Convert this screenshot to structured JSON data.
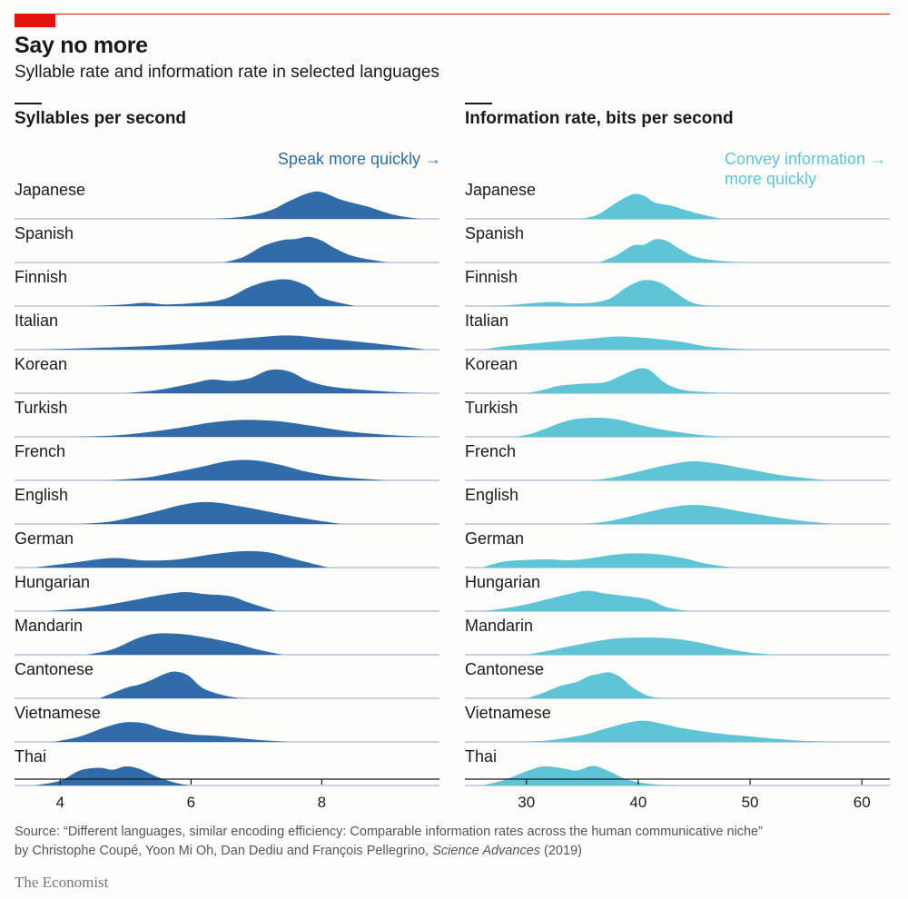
{
  "header": {
    "title": "Say no more",
    "subtitle": "Syllable rate and information rate in selected languages"
  },
  "colors": {
    "accent": "#e3120b",
    "left_fill": "#2f6ca8",
    "right_fill": "#5ec5d6",
    "baseline": "#aab9c9"
  },
  "chart_data": [
    {
      "type": "area",
      "title": "Syllables per second",
      "annotation": "Speak more quickly →",
      "xlim": [
        3.3,
        9.8
      ],
      "xticks": [
        4,
        6,
        8
      ],
      "grid": false,
      "languages": [
        "Japanese",
        "Spanish",
        "Finnish",
        "Italian",
        "Korean",
        "Turkish",
        "French",
        "English",
        "German",
        "Hungarian",
        "Mandarin",
        "Cantonese",
        "Vietnamese",
        "Thai"
      ],
      "series": [
        {
          "name": "Japanese",
          "x": [
            6.3,
            6.8,
            7.2,
            7.5,
            7.8,
            8.0,
            8.3,
            8.7,
            9.1,
            9.5
          ],
          "y": [
            0,
            0.08,
            0.3,
            0.65,
            0.95,
            0.98,
            0.7,
            0.45,
            0.15,
            0
          ]
        },
        {
          "name": "Spanish",
          "x": [
            6.5,
            6.8,
            7.1,
            7.4,
            7.6,
            7.8,
            8.0,
            8.2,
            8.5,
            9.0
          ],
          "y": [
            0,
            0.2,
            0.6,
            0.82,
            0.86,
            0.94,
            0.8,
            0.52,
            0.22,
            0
          ]
        },
        {
          "name": "Finnish",
          "x": [
            4.5,
            5.0,
            5.3,
            5.6,
            6.0,
            6.5,
            6.9,
            7.2,
            7.5,
            7.8,
            8.0,
            8.5
          ],
          "y": [
            0,
            0.06,
            0.12,
            0.06,
            0.1,
            0.25,
            0.7,
            0.92,
            0.97,
            0.7,
            0.3,
            0
          ]
        },
        {
          "name": "Italian",
          "x": [
            3.6,
            4.5,
            5.5,
            6.3,
            7.0,
            7.5,
            8.0,
            8.6,
            9.2,
            9.6
          ],
          "y": [
            0,
            0.06,
            0.15,
            0.3,
            0.45,
            0.52,
            0.42,
            0.28,
            0.12,
            0
          ]
        },
        {
          "name": "Korean",
          "x": [
            5.0,
            5.5,
            6.0,
            6.3,
            6.6,
            6.9,
            7.2,
            7.5,
            7.8,
            8.2,
            9.0,
            9.6
          ],
          "y": [
            0,
            0.12,
            0.35,
            0.5,
            0.45,
            0.55,
            0.85,
            0.8,
            0.45,
            0.22,
            0.06,
            0
          ]
        },
        {
          "name": "Turkish",
          "x": [
            4.2,
            5.0,
            5.8,
            6.3,
            6.8,
            7.3,
            7.8,
            8.4,
            9.0,
            9.6
          ],
          "y": [
            0,
            0.08,
            0.32,
            0.52,
            0.62,
            0.58,
            0.42,
            0.2,
            0.07,
            0
          ]
        },
        {
          "name": "French",
          "x": [
            4.7,
            5.3,
            5.8,
            6.2,
            6.6,
            7.0,
            7.4,
            7.8,
            8.3,
            9.0
          ],
          "y": [
            0,
            0.1,
            0.32,
            0.52,
            0.72,
            0.73,
            0.55,
            0.3,
            0.12,
            0
          ]
        },
        {
          "name": "English",
          "x": [
            4.3,
            4.8,
            5.4,
            5.9,
            6.3,
            6.8,
            7.3,
            7.8,
            8.3
          ],
          "y": [
            0,
            0.1,
            0.42,
            0.72,
            0.8,
            0.63,
            0.4,
            0.18,
            0
          ]
        },
        {
          "name": "German",
          "x": [
            3.6,
            4.2,
            4.8,
            5.3,
            5.8,
            6.3,
            6.8,
            7.2,
            7.6,
            8.1
          ],
          "y": [
            0,
            0.18,
            0.35,
            0.26,
            0.3,
            0.48,
            0.6,
            0.55,
            0.3,
            0
          ]
        },
        {
          "name": "Hungarian",
          "x": [
            3.8,
            4.4,
            5.0,
            5.5,
            5.9,
            6.2,
            6.6,
            6.9,
            7.3
          ],
          "y": [
            0,
            0.12,
            0.35,
            0.58,
            0.7,
            0.63,
            0.55,
            0.3,
            0
          ]
        },
        {
          "name": "Mandarin",
          "x": [
            4.4,
            4.8,
            5.2,
            5.5,
            5.9,
            6.3,
            6.7,
            7.0,
            7.4
          ],
          "y": [
            0,
            0.2,
            0.62,
            0.78,
            0.75,
            0.6,
            0.4,
            0.2,
            0
          ]
        },
        {
          "name": "Cantonese",
          "x": [
            4.6,
            5.0,
            5.2,
            5.4,
            5.6,
            5.75,
            5.95,
            6.2,
            6.6,
            6.9
          ],
          "y": [
            0,
            0.38,
            0.5,
            0.68,
            0.9,
            0.98,
            0.85,
            0.35,
            0.06,
            0
          ]
        },
        {
          "name": "Vietnamese",
          "x": [
            3.9,
            4.3,
            4.7,
            5.0,
            5.3,
            5.6,
            6.0,
            6.4,
            7.0,
            7.5
          ],
          "y": [
            0,
            0.2,
            0.55,
            0.72,
            0.68,
            0.45,
            0.28,
            0.22,
            0.08,
            0
          ]
        },
        {
          "name": "Thai",
          "x": [
            3.6,
            4.0,
            4.3,
            4.6,
            4.8,
            5.0,
            5.2,
            5.5,
            5.8,
            6.0
          ],
          "y": [
            0,
            0.18,
            0.55,
            0.65,
            0.58,
            0.7,
            0.62,
            0.3,
            0.08,
            0
          ]
        }
      ]
    },
    {
      "type": "area",
      "title": "Information rate, bits per second",
      "annotation_lines": [
        "Convey information →",
        "more quickly"
      ],
      "xlim": [
        24.5,
        62.5
      ],
      "xticks": [
        30,
        40,
        50,
        60
      ],
      "grid": false,
      "languages": [
        "Japanese",
        "Spanish",
        "Finnish",
        "Italian",
        "Korean",
        "Turkish",
        "French",
        "English",
        "German",
        "Hungarian",
        "Mandarin",
        "Cantonese",
        "Vietnamese",
        "Thai"
      ],
      "series": [
        {
          "name": "Japanese",
          "x": [
            35,
            36.5,
            38,
            39.5,
            40.5,
            41.5,
            43,
            44,
            45.5,
            47.5
          ],
          "y": [
            0,
            0.18,
            0.58,
            0.9,
            0.85,
            0.6,
            0.48,
            0.35,
            0.18,
            0
          ]
        },
        {
          "name": "Spanish",
          "x": [
            36.5,
            38,
            39.5,
            40.5,
            41.5,
            42.5,
            43.5,
            45,
            47,
            49.5
          ],
          "y": [
            0,
            0.25,
            0.62,
            0.65,
            0.85,
            0.8,
            0.55,
            0.22,
            0.07,
            0
          ]
        },
        {
          "name": "Finnish",
          "x": [
            27,
            29,
            31,
            32.5,
            34,
            36,
            37.5,
            39,
            40.5,
            42,
            43.5,
            45,
            47
          ],
          "y": [
            0,
            0.05,
            0.12,
            0.15,
            0.1,
            0.13,
            0.28,
            0.7,
            0.95,
            0.85,
            0.45,
            0.1,
            0
          ]
        },
        {
          "name": "Italian",
          "x": [
            26,
            28,
            30,
            32,
            35,
            38,
            40,
            42,
            44,
            46,
            48.5,
            51
          ],
          "y": [
            0,
            0.12,
            0.2,
            0.28,
            0.38,
            0.48,
            0.45,
            0.38,
            0.28,
            0.12,
            0.04,
            0
          ]
        },
        {
          "name": "Korean",
          "x": [
            30,
            31.5,
            33,
            35,
            37,
            38.5,
            40,
            41,
            42.5,
            44,
            46,
            48.5
          ],
          "y": [
            0,
            0.12,
            0.28,
            0.35,
            0.4,
            0.65,
            0.9,
            0.85,
            0.35,
            0.12,
            0.04,
            0
          ]
        },
        {
          "name": "Turkish",
          "x": [
            29,
            30.5,
            32,
            34,
            36,
            38,
            40,
            42,
            44,
            46,
            48
          ],
          "y": [
            0,
            0.12,
            0.35,
            0.62,
            0.7,
            0.65,
            0.45,
            0.28,
            0.15,
            0.05,
            0
          ]
        },
        {
          "name": "French",
          "x": [
            35,
            37,
            39,
            41,
            43,
            45,
            47,
            50,
            53,
            57
          ],
          "y": [
            0,
            0.06,
            0.22,
            0.42,
            0.6,
            0.7,
            0.62,
            0.4,
            0.18,
            0
          ]
        },
        {
          "name": "English",
          "x": [
            35,
            37,
            39,
            41,
            43,
            45,
            47,
            50,
            54,
            57.5
          ],
          "y": [
            0,
            0.08,
            0.25,
            0.45,
            0.62,
            0.7,
            0.62,
            0.4,
            0.15,
            0
          ]
        },
        {
          "name": "German",
          "x": [
            26,
            28,
            30,
            32,
            34,
            36,
            38,
            40,
            42,
            44,
            46,
            48.5
          ],
          "y": [
            0,
            0.22,
            0.28,
            0.3,
            0.27,
            0.36,
            0.48,
            0.52,
            0.48,
            0.35,
            0.15,
            0
          ]
        },
        {
          "name": "Hungarian",
          "x": [
            26,
            28,
            30,
            32,
            34,
            35.5,
            37,
            39,
            41,
            42.5,
            44.5
          ],
          "y": [
            0,
            0.1,
            0.25,
            0.45,
            0.65,
            0.75,
            0.65,
            0.55,
            0.42,
            0.15,
            0
          ]
        },
        {
          "name": "Mandarin",
          "x": [
            30,
            32,
            34,
            36,
            38,
            40,
            42,
            44,
            46,
            48,
            50,
            52.5
          ],
          "y": [
            0,
            0.15,
            0.32,
            0.48,
            0.6,
            0.63,
            0.62,
            0.55,
            0.4,
            0.22,
            0.08,
            0
          ]
        },
        {
          "name": "Cantonese",
          "x": [
            30,
            31.5,
            33,
            34.5,
            35.5,
            36.5,
            37.5,
            38.5,
            39.5,
            41,
            42.5
          ],
          "y": [
            0,
            0.2,
            0.45,
            0.6,
            0.8,
            0.9,
            0.95,
            0.75,
            0.4,
            0.08,
            0
          ]
        },
        {
          "name": "Vietnamese",
          "x": [
            29,
            32,
            35,
            37,
            39,
            40.5,
            42,
            44,
            47,
            50,
            54,
            58
          ],
          "y": [
            0,
            0.06,
            0.25,
            0.48,
            0.7,
            0.78,
            0.68,
            0.5,
            0.32,
            0.2,
            0.06,
            0
          ]
        },
        {
          "name": "Thai",
          "x": [
            26,
            28,
            30,
            31.5,
            33,
            34.5,
            36,
            37.5,
            39,
            41,
            43.5
          ],
          "y": [
            0,
            0.2,
            0.52,
            0.7,
            0.65,
            0.55,
            0.72,
            0.5,
            0.22,
            0.06,
            0
          ]
        }
      ]
    }
  ],
  "source": {
    "prefix": "Source: “Different languages, similar encoding efficiency: Comparable information rates across the human communicative niche”",
    "authors": "by Christophe Coupé, Yoon Mi Oh, Dan Dediu and François Pellegrino, ",
    "journal": "Science Advances",
    "year": " (2019)"
  },
  "brand": "The Economist"
}
